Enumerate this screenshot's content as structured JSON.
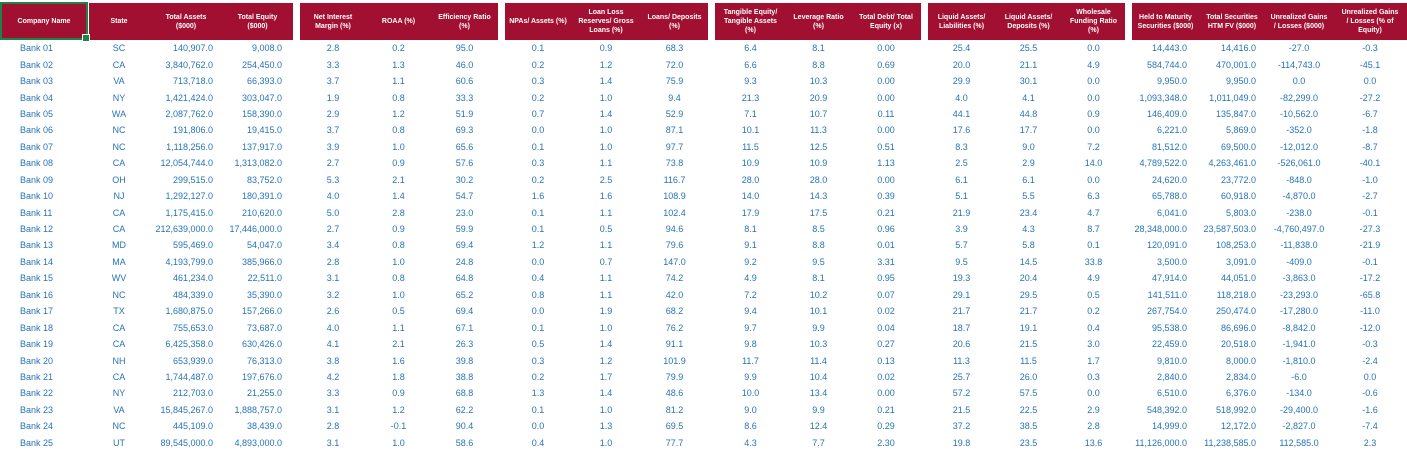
{
  "colors": {
    "header_bg": "#A11031",
    "data_text": "#2673B8",
    "selection_green": "#1A8449",
    "header_text": "#FFFFFF",
    "background": "#FFFFFF"
  },
  "selection": {
    "selected_cell": "Company Name"
  },
  "table": {
    "columns": [
      {
        "id": "company-name",
        "label": "Company Name"
      },
      {
        "id": "state",
        "label": "State"
      },
      {
        "id": "total-assets",
        "label": "Total Assets\n($000)"
      },
      {
        "id": "total-equity",
        "label": "Total Equity\n($000)"
      },
      {
        "id": "net-interest-margin",
        "label": "Net Interest\nMargin (%)"
      },
      {
        "id": "roaa",
        "label": "ROAA (%)"
      },
      {
        "id": "efficiency-ratio",
        "label": "Efficiency Ratio\n(%)"
      },
      {
        "id": "npas-assets",
        "label": "NPAs/ Assets (%)"
      },
      {
        "id": "loan-loss-reserves",
        "label": "Loan Loss\nReserves/ Gross\nLoans (%)"
      },
      {
        "id": "loans-deposits",
        "label": "Loans/ Deposits\n(%)"
      },
      {
        "id": "tangible-equity-tangible-assets",
        "label": "Tangible Equity/\nTangible Assets\n(%)"
      },
      {
        "id": "leverage-ratio",
        "label": "Leverage Ratio\n(%)"
      },
      {
        "id": "total-debt-total-equity",
        "label": "Total Debt/ Total\nEquity (x)"
      },
      {
        "id": "liquid-assets-liabilities",
        "label": "Liquid Assets/\nLiabilities (%)"
      },
      {
        "id": "liquid-assets-deposits",
        "label": "Liquid Assets/\nDeposits (%)"
      },
      {
        "id": "wholesale-funding-ratio",
        "label": "Wholesale\nFunding Ratio\n(%)"
      },
      {
        "id": "held-to-maturity-securities",
        "label": "Held to Maturity\nSecurities ($000)"
      },
      {
        "id": "total-securities-htm-fv",
        "label": "Total Securities\nHTM FV ($000)"
      },
      {
        "id": "unrealized-gains-losses",
        "label": "Unrealized Gains\n/ Losses ($000)"
      },
      {
        "id": "unrealized-gains-losses-pct-equity",
        "label": "Unrealized Gains\n/ Losses (% of\nEquity)"
      }
    ],
    "rows": [
      [
        "Bank 01",
        "SC",
        "140,907.0",
        "9,008.0",
        "2.8",
        "0.2",
        "95.0",
        "0.1",
        "0.9",
        "68.3",
        "6.4",
        "8.1",
        "0.00",
        "25.4",
        "25.5",
        "0.0",
        "14,443.0",
        "14,416.0",
        "-27.0",
        "-0.3"
      ],
      [
        "Bank 02",
        "CA",
        "3,840,762.0",
        "254,450.0",
        "3.3",
        "1.3",
        "46.0",
        "0.2",
        "1.2",
        "72.0",
        "6.6",
        "8.8",
        "0.69",
        "20.0",
        "21.1",
        "4.9",
        "584,744.0",
        "470,001.0",
        "-114,743.0",
        "-45.1"
      ],
      [
        "Bank 03",
        "VA",
        "713,718.0",
        "66,393.0",
        "3.7",
        "1.1",
        "60.6",
        "0.3",
        "1.4",
        "75.9",
        "9.3",
        "10.3",
        "0.00",
        "29.9",
        "30.1",
        "0.0",
        "9,950.0",
        "9,950.0",
        "0.0",
        "0.0"
      ],
      [
        "Bank 04",
        "NY",
        "1,421,424.0",
        "303,047.0",
        "1.9",
        "0.8",
        "33.3",
        "0.2",
        "1.0",
        "9.4",
        "21.3",
        "20.9",
        "0.00",
        "4.0",
        "4.1",
        "0.0",
        "1,093,348.0",
        "1,011,049.0",
        "-82,299.0",
        "-27.2"
      ],
      [
        "Bank 05",
        "WA",
        "2,087,762.0",
        "158,390.0",
        "2.9",
        "1.2",
        "51.9",
        "0.7",
        "1.4",
        "52.9",
        "7.1",
        "10.7",
        "0.11",
        "44.1",
        "44.8",
        "0.9",
        "146,409.0",
        "135,847.0",
        "-10,562.0",
        "-6.7"
      ],
      [
        "Bank 06",
        "NC",
        "191,806.0",
        "19,415.0",
        "3.7",
        "0.8",
        "69.3",
        "0.0",
        "1.0",
        "87.1",
        "10.1",
        "11.3",
        "0.00",
        "17.6",
        "17.7",
        "0.0",
        "6,221.0",
        "5,869.0",
        "-352.0",
        "-1.8"
      ],
      [
        "Bank 07",
        "NC",
        "1,118,256.0",
        "137,917.0",
        "3.9",
        "1.0",
        "65.6",
        "0.1",
        "1.0",
        "97.7",
        "11.5",
        "12.5",
        "0.51",
        "8.3",
        "9.0",
        "7.2",
        "81,512.0",
        "69,500.0",
        "-12,012.0",
        "-8.7"
      ],
      [
        "Bank 08",
        "CA",
        "12,054,744.0",
        "1,313,082.0",
        "2.7",
        "0.9",
        "57.6",
        "0.3",
        "1.1",
        "73.8",
        "10.9",
        "10.9",
        "1.13",
        "2.5",
        "2.9",
        "14.0",
        "4,789,522.0",
        "4,263,461.0",
        "-526,061.0",
        "-40.1"
      ],
      [
        "Bank 09",
        "OH",
        "299,515.0",
        "83,752.0",
        "5.3",
        "2.1",
        "30.2",
        "0.2",
        "2.5",
        "116.7",
        "28.0",
        "28.0",
        "0.00",
        "6.1",
        "6.1",
        "0.0",
        "24,620.0",
        "23,772.0",
        "-848.0",
        "-1.0"
      ],
      [
        "Bank 10",
        "NJ",
        "1,292,127.0",
        "180,391.0",
        "4.0",
        "1.4",
        "54.7",
        "1.6",
        "1.6",
        "108.9",
        "14.0",
        "14.3",
        "0.39",
        "5.1",
        "5.5",
        "6.3",
        "65,788.0",
        "60,918.0",
        "-4,870.0",
        "-2.7"
      ],
      [
        "Bank 11",
        "CA",
        "1,175,415.0",
        "210,620.0",
        "5.0",
        "2.8",
        "23.0",
        "0.1",
        "1.1",
        "102.4",
        "17.9",
        "17.5",
        "0.21",
        "21.9",
        "23.4",
        "4.7",
        "6,041.0",
        "5,803.0",
        "-238.0",
        "-0.1"
      ],
      [
        "Bank 12",
        "CA",
        "212,639,000.0",
        "17,446,000.0",
        "2.7",
        "0.9",
        "59.9",
        "0.1",
        "0.5",
        "94.6",
        "8.1",
        "8.5",
        "0.96",
        "3.9",
        "4.3",
        "8.7",
        "28,348,000.0",
        "23,587,503.0",
        "-4,760,497.0",
        "-27.3"
      ],
      [
        "Bank 13",
        "MD",
        "595,469.0",
        "54,047.0",
        "3.4",
        "0.8",
        "69.4",
        "1.2",
        "1.1",
        "79.6",
        "9.1",
        "8.8",
        "0.01",
        "5.7",
        "5.8",
        "0.1",
        "120,091.0",
        "108,253.0",
        "-11,838.0",
        "-21.9"
      ],
      [
        "Bank 14",
        "MA",
        "4,193,799.0",
        "385,966.0",
        "2.8",
        "1.0",
        "24.8",
        "0.0",
        "0.7",
        "147.0",
        "9.2",
        "9.5",
        "3.31",
        "9.5",
        "14.5",
        "33.8",
        "3,500.0",
        "3,091.0",
        "-409.0",
        "-0.1"
      ],
      [
        "Bank 15",
        "WV",
        "461,234.0",
        "22,511.0",
        "3.1",
        "0.8",
        "64.8",
        "0.4",
        "1.1",
        "74.2",
        "4.9",
        "8.1",
        "0.95",
        "19.3",
        "20.4",
        "4.9",
        "47,914.0",
        "44,051.0",
        "-3,863.0",
        "-17.2"
      ],
      [
        "Bank 16",
        "NC",
        "484,339.0",
        "35,390.0",
        "3.2",
        "1.0",
        "65.2",
        "0.8",
        "1.1",
        "42.0",
        "7.2",
        "10.2",
        "0.07",
        "29.1",
        "29.5",
        "0.5",
        "141,511.0",
        "118,218.0",
        "-23,293.0",
        "-65.8"
      ],
      [
        "Bank 17",
        "TX",
        "1,680,875.0",
        "157,266.0",
        "2.6",
        "0.5",
        "69.4",
        "0.0",
        "1.9",
        "68.2",
        "9.4",
        "10.1",
        "0.02",
        "21.7",
        "21.7",
        "0.2",
        "267,754.0",
        "250,474.0",
        "-17,280.0",
        "-11.0"
      ],
      [
        "Bank 18",
        "CA",
        "755,653.0",
        "73,687.0",
        "4.0",
        "1.1",
        "67.1",
        "0.1",
        "1.0",
        "76.2",
        "9.7",
        "9.9",
        "0.04",
        "18.7",
        "19.1",
        "0.4",
        "95,538.0",
        "86,696.0",
        "-8,842.0",
        "-12.0"
      ],
      [
        "Bank 19",
        "CA",
        "6,425,358.0",
        "630,426.0",
        "4.1",
        "2.1",
        "26.3",
        "0.5",
        "1.4",
        "91.1",
        "9.8",
        "10.3",
        "0.27",
        "20.6",
        "21.5",
        "3.0",
        "22,459.0",
        "20,518.0",
        "-1,941.0",
        "-0.3"
      ],
      [
        "Bank 20",
        "NH",
        "653,939.0",
        "76,313.0",
        "3.8",
        "1.6",
        "39.8",
        "0.3",
        "1.2",
        "101.9",
        "11.7",
        "11.4",
        "0.13",
        "11.3",
        "11.5",
        "1.7",
        "9,810.0",
        "8,000.0",
        "-1,810.0",
        "-2.4"
      ],
      [
        "Bank 21",
        "CA",
        "1,744,487.0",
        "197,676.0",
        "4.2",
        "1.8",
        "38.8",
        "0.2",
        "1.7",
        "79.9",
        "9.9",
        "10.4",
        "0.02",
        "25.7",
        "26.0",
        "0.3",
        "2,840.0",
        "2,834.0",
        "-6.0",
        "0.0"
      ],
      [
        "Bank 22",
        "NY",
        "212,703.0",
        "21,255.0",
        "3.3",
        "0.9",
        "68.8",
        "1.3",
        "1.4",
        "48.6",
        "10.0",
        "13.4",
        "0.00",
        "57.2",
        "57.5",
        "0.0",
        "6,510.0",
        "6,376.0",
        "-134.0",
        "-0.6"
      ],
      [
        "Bank 23",
        "VA",
        "15,845,267.0",
        "1,888,757.0",
        "3.1",
        "1.2",
        "62.2",
        "0.1",
        "1.0",
        "81.2",
        "9.0",
        "9.9",
        "0.21",
        "21.5",
        "22.5",
        "2.9",
        "548,392.0",
        "518,992.0",
        "-29,400.0",
        "-1.6"
      ],
      [
        "Bank 24",
        "NC",
        "445,109.0",
        "38,439.0",
        "2.8",
        "-0.1",
        "90.4",
        "0.0",
        "1.3",
        "69.5",
        "8.6",
        "12.4",
        "0.29",
        "37.2",
        "38.5",
        "2.8",
        "14,999.0",
        "12,172.0",
        "-2,827.0",
        "-7.4"
      ],
      [
        "Bank 25",
        "UT",
        "89,545,000.0",
        "4,893,000.0",
        "3.1",
        "1.0",
        "58.6",
        "0.4",
        "1.0",
        "77.7",
        "4.3",
        "7.7",
        "2.30",
        "19.8",
        "23.5",
        "13.6",
        "11,126,000.0",
        "11,238,585.0",
        "112,585.0",
        "2.3"
      ]
    ]
  }
}
